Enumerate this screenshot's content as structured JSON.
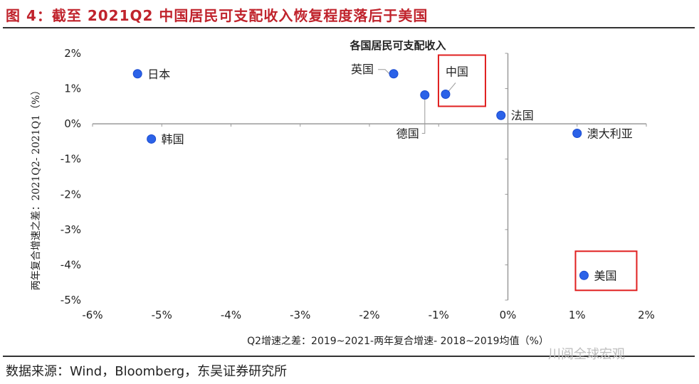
{
  "figure": {
    "title": "图 4：截至 2021Q2 中国居民可支配收入恢复程度落后于美国",
    "source": "数据来源：Wind，Bloomberg，东吴证券研究所",
    "watermark": "川阅全球宏观"
  },
  "colors": {
    "title": "#c0232c",
    "point": "#2b62e8",
    "highlight_box": "#e02020",
    "axis": "#9a9a9a",
    "text": "#222222"
  },
  "chart_data": {
    "type": "scatter",
    "title": "各国居民可支配收入",
    "xlabel": "Q2增速之差：2019~2021-两年复合增速- 2018~2019均值（%）",
    "ylabel": "两年复合增速之差：2021Q2- 2021Q1（%）",
    "xlim": [
      -6,
      2
    ],
    "ylim": [
      -5,
      2
    ],
    "x_ticks": [
      -6,
      -5,
      -4,
      -3,
      -2,
      -1,
      0,
      1,
      2
    ],
    "x_tick_labels": [
      "-6%",
      "-5%",
      "-4%",
      "-3%",
      "-2%",
      "-1%",
      "0%",
      "1%",
      "2%"
    ],
    "y_ticks": [
      2,
      1,
      0,
      -1,
      -2,
      -3,
      -4,
      -5
    ],
    "y_tick_labels": [
      "2%",
      "1%",
      "0%",
      "-1%",
      "-2%",
      "-3%",
      "-4%",
      "-5%"
    ],
    "grid": false,
    "points": [
      {
        "label": "日本",
        "x": -5.35,
        "y": 1.42,
        "label_side": "right",
        "highlight": false
      },
      {
        "label": "韩国",
        "x": -5.15,
        "y": -0.43,
        "label_side": "right",
        "highlight": false
      },
      {
        "label": "英国",
        "x": -1.65,
        "y": 1.42,
        "label_side": "left-callout",
        "highlight": false
      },
      {
        "label": "德国",
        "x": -1.2,
        "y": 0.82,
        "label_side": "below-callout",
        "highlight": false
      },
      {
        "label": "中国",
        "x": -0.9,
        "y": 0.84,
        "label_side": "above-callout",
        "highlight": true
      },
      {
        "label": "法国",
        "x": -0.1,
        "y": 0.24,
        "label_side": "right",
        "highlight": false
      },
      {
        "label": "澳大利亚",
        "x": 1.0,
        "y": -0.27,
        "label_side": "right",
        "highlight": false
      },
      {
        "label": "美国",
        "x": 1.1,
        "y": -4.3,
        "label_side": "right",
        "highlight": true
      }
    ]
  }
}
